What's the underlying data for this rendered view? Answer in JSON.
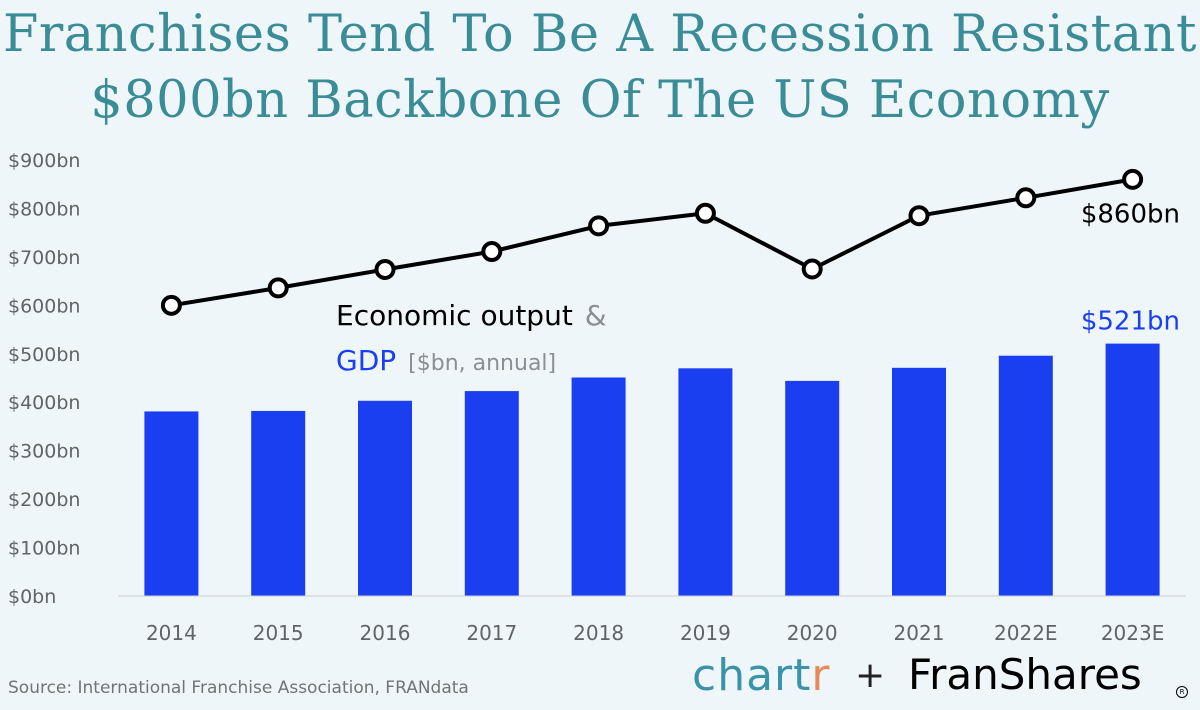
{
  "title_line1": "Franchises Tend To Be A Recession Resistant",
  "title_line2": "$800bn Backbone Of The US Economy",
  "chart_data": {
    "type": "bar+line",
    "categories": [
      "2014",
      "2015",
      "2016",
      "2017",
      "2018",
      "2019",
      "2020",
      "2021",
      "2022E",
      "2023E"
    ],
    "series": [
      {
        "name": "Economic output",
        "type": "line",
        "values": [
          600,
          636,
          674,
          711,
          764,
          790,
          675,
          785,
          822,
          860
        ],
        "color": "#000000"
      },
      {
        "name": "GDP",
        "type": "bar",
        "values": [
          381,
          382,
          403,
          423,
          451,
          470,
          444,
          471,
          496,
          521
        ],
        "color": "#1a3ff0"
      }
    ],
    "ylim": [
      0,
      900
    ],
    "y_ticks": [
      "$0bn",
      "$100bn",
      "$200bn",
      "$300bn",
      "$400bn",
      "$500bn",
      "$600bn",
      "$700bn",
      "$800bn",
      "$900bn"
    ],
    "legend": {
      "line_label": "Economic output",
      "ampersand": "&",
      "bar_label": "GDP",
      "unit_note": "[$bn, annual]"
    },
    "annotations": {
      "line_last": "$860bn",
      "bar_last": "$521bn"
    },
    "grid": false
  },
  "source": "Source: International Franchise Association, FRANdata",
  "logos": {
    "chartr_main": "chart",
    "chartr_tail": "r",
    "plus": "+",
    "franshares": "FranShares",
    "registered": "R"
  },
  "colors": {
    "title": "#3a8c96",
    "bar": "#1a3ff0",
    "line": "#000000",
    "background": "#eef6f9"
  }
}
